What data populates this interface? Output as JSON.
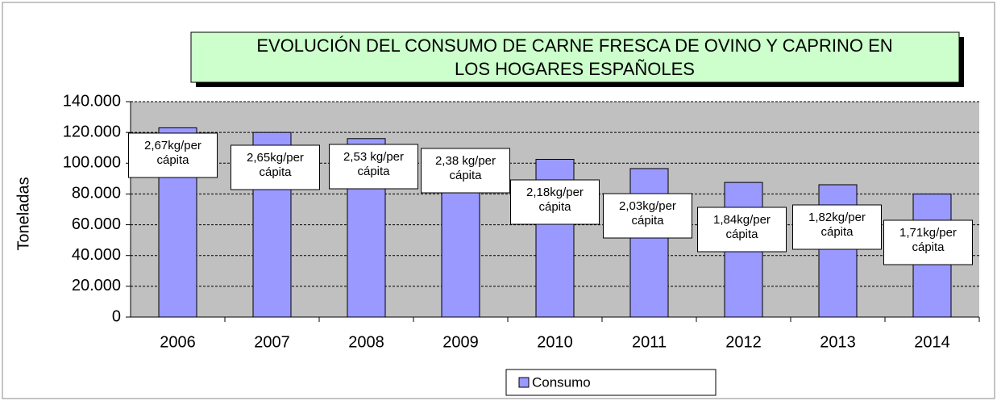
{
  "chart_data": {
    "type": "bar",
    "title": [
      "EVOLUCIÓN DEL CONSUMO DE CARNE FRESCA DE OVINO Y CAPRINO EN",
      "LOS HOGARES ESPAÑOLES"
    ],
    "y_label": "Toneladas",
    "categories": [
      "2006",
      "2007",
      "2008",
      "2009",
      "2010",
      "2011",
      "2012",
      "2013",
      "2014"
    ],
    "series": [
      {
        "name": "Consumo",
        "color": "#9999ff",
        "values": [
          123000,
          120000,
          116000,
          109500,
          102500,
          96500,
          87500,
          86000,
          80000
        ]
      }
    ],
    "annotations": [
      [
        "2,67kg/per",
        "cápita"
      ],
      [
        "2,65kg/per",
        "cápita"
      ],
      [
        "2,53 kg/per",
        "cápita"
      ],
      [
        "2,38 kg/per",
        "cápita"
      ],
      [
        "2,18kg/per",
        "cápita"
      ],
      [
        "2,03kg/per",
        "cápita"
      ],
      [
        "1,84kg/per",
        "cápita"
      ],
      [
        "1,82kg/per",
        "cápita"
      ],
      [
        "1,71kg/per",
        "cápita"
      ]
    ],
    "ylim": [
      0,
      140000
    ],
    "yticks": [
      0,
      {
        "value": 20000,
        "label": "20.000"
      },
      {
        "value": 40000,
        "label": "40.000"
      },
      {
        "value": 60000,
        "label": "60.000"
      },
      {
        "value": 80000,
        "label": "80.000"
      },
      {
        "value": 100000,
        "label": "100.000"
      },
      {
        "value": 120000,
        "label": "120.000"
      },
      {
        "value": 140000,
        "label": "140.000"
      }
    ],
    "grid": true,
    "legend": "bottom"
  }
}
